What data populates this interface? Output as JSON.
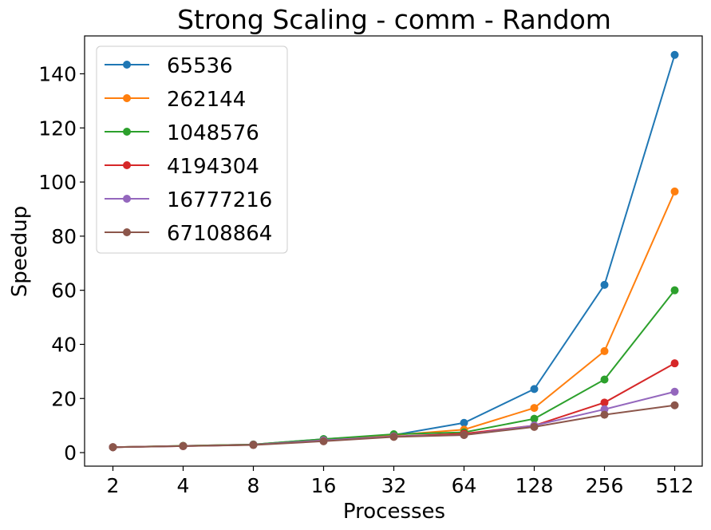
{
  "chart_data": {
    "type": "line",
    "title": "Strong Scaling - comm  - Random",
    "xlabel": "Processes",
    "ylabel": "Speedup",
    "x": [
      "2",
      "4",
      "8",
      "16",
      "32",
      "64",
      "128",
      "256",
      "512"
    ],
    "yticks": [
      "0",
      "20",
      "40",
      "60",
      "80",
      "100",
      "120",
      "140"
    ],
    "ylim": [
      -5,
      154
    ],
    "grid": false,
    "legend_position": "top-left",
    "series": [
      {
        "name": "65536",
        "color": "#1f77b4",
        "values": [
          2.0,
          2.5,
          3.0,
          5.0,
          6.5,
          11.0,
          23.5,
          62.0,
          147.0
        ]
      },
      {
        "name": "262144",
        "color": "#ff7f0e",
        "values": [
          2.0,
          2.5,
          3.0,
          4.8,
          6.5,
          8.5,
          16.5,
          37.5,
          96.5
        ]
      },
      {
        "name": "1048576",
        "color": "#2ca02c",
        "values": [
          2.0,
          2.5,
          3.0,
          5.0,
          6.8,
          7.5,
          12.5,
          27.0,
          60.0
        ]
      },
      {
        "name": "4194304",
        "color": "#d62728",
        "values": [
          2.0,
          2.4,
          2.9,
          4.5,
          6.0,
          7.0,
          10.0,
          18.5,
          33.0
        ]
      },
      {
        "name": "16777216",
        "color": "#9467bd",
        "values": [
          2.0,
          2.4,
          2.9,
          4.5,
          6.0,
          6.5,
          10.0,
          16.0,
          22.5
        ]
      },
      {
        "name": "67108864",
        "color": "#8c564b",
        "values": [
          2.0,
          2.4,
          2.8,
          4.2,
          5.8,
          6.5,
          9.5,
          14.0,
          17.5
        ]
      }
    ]
  }
}
